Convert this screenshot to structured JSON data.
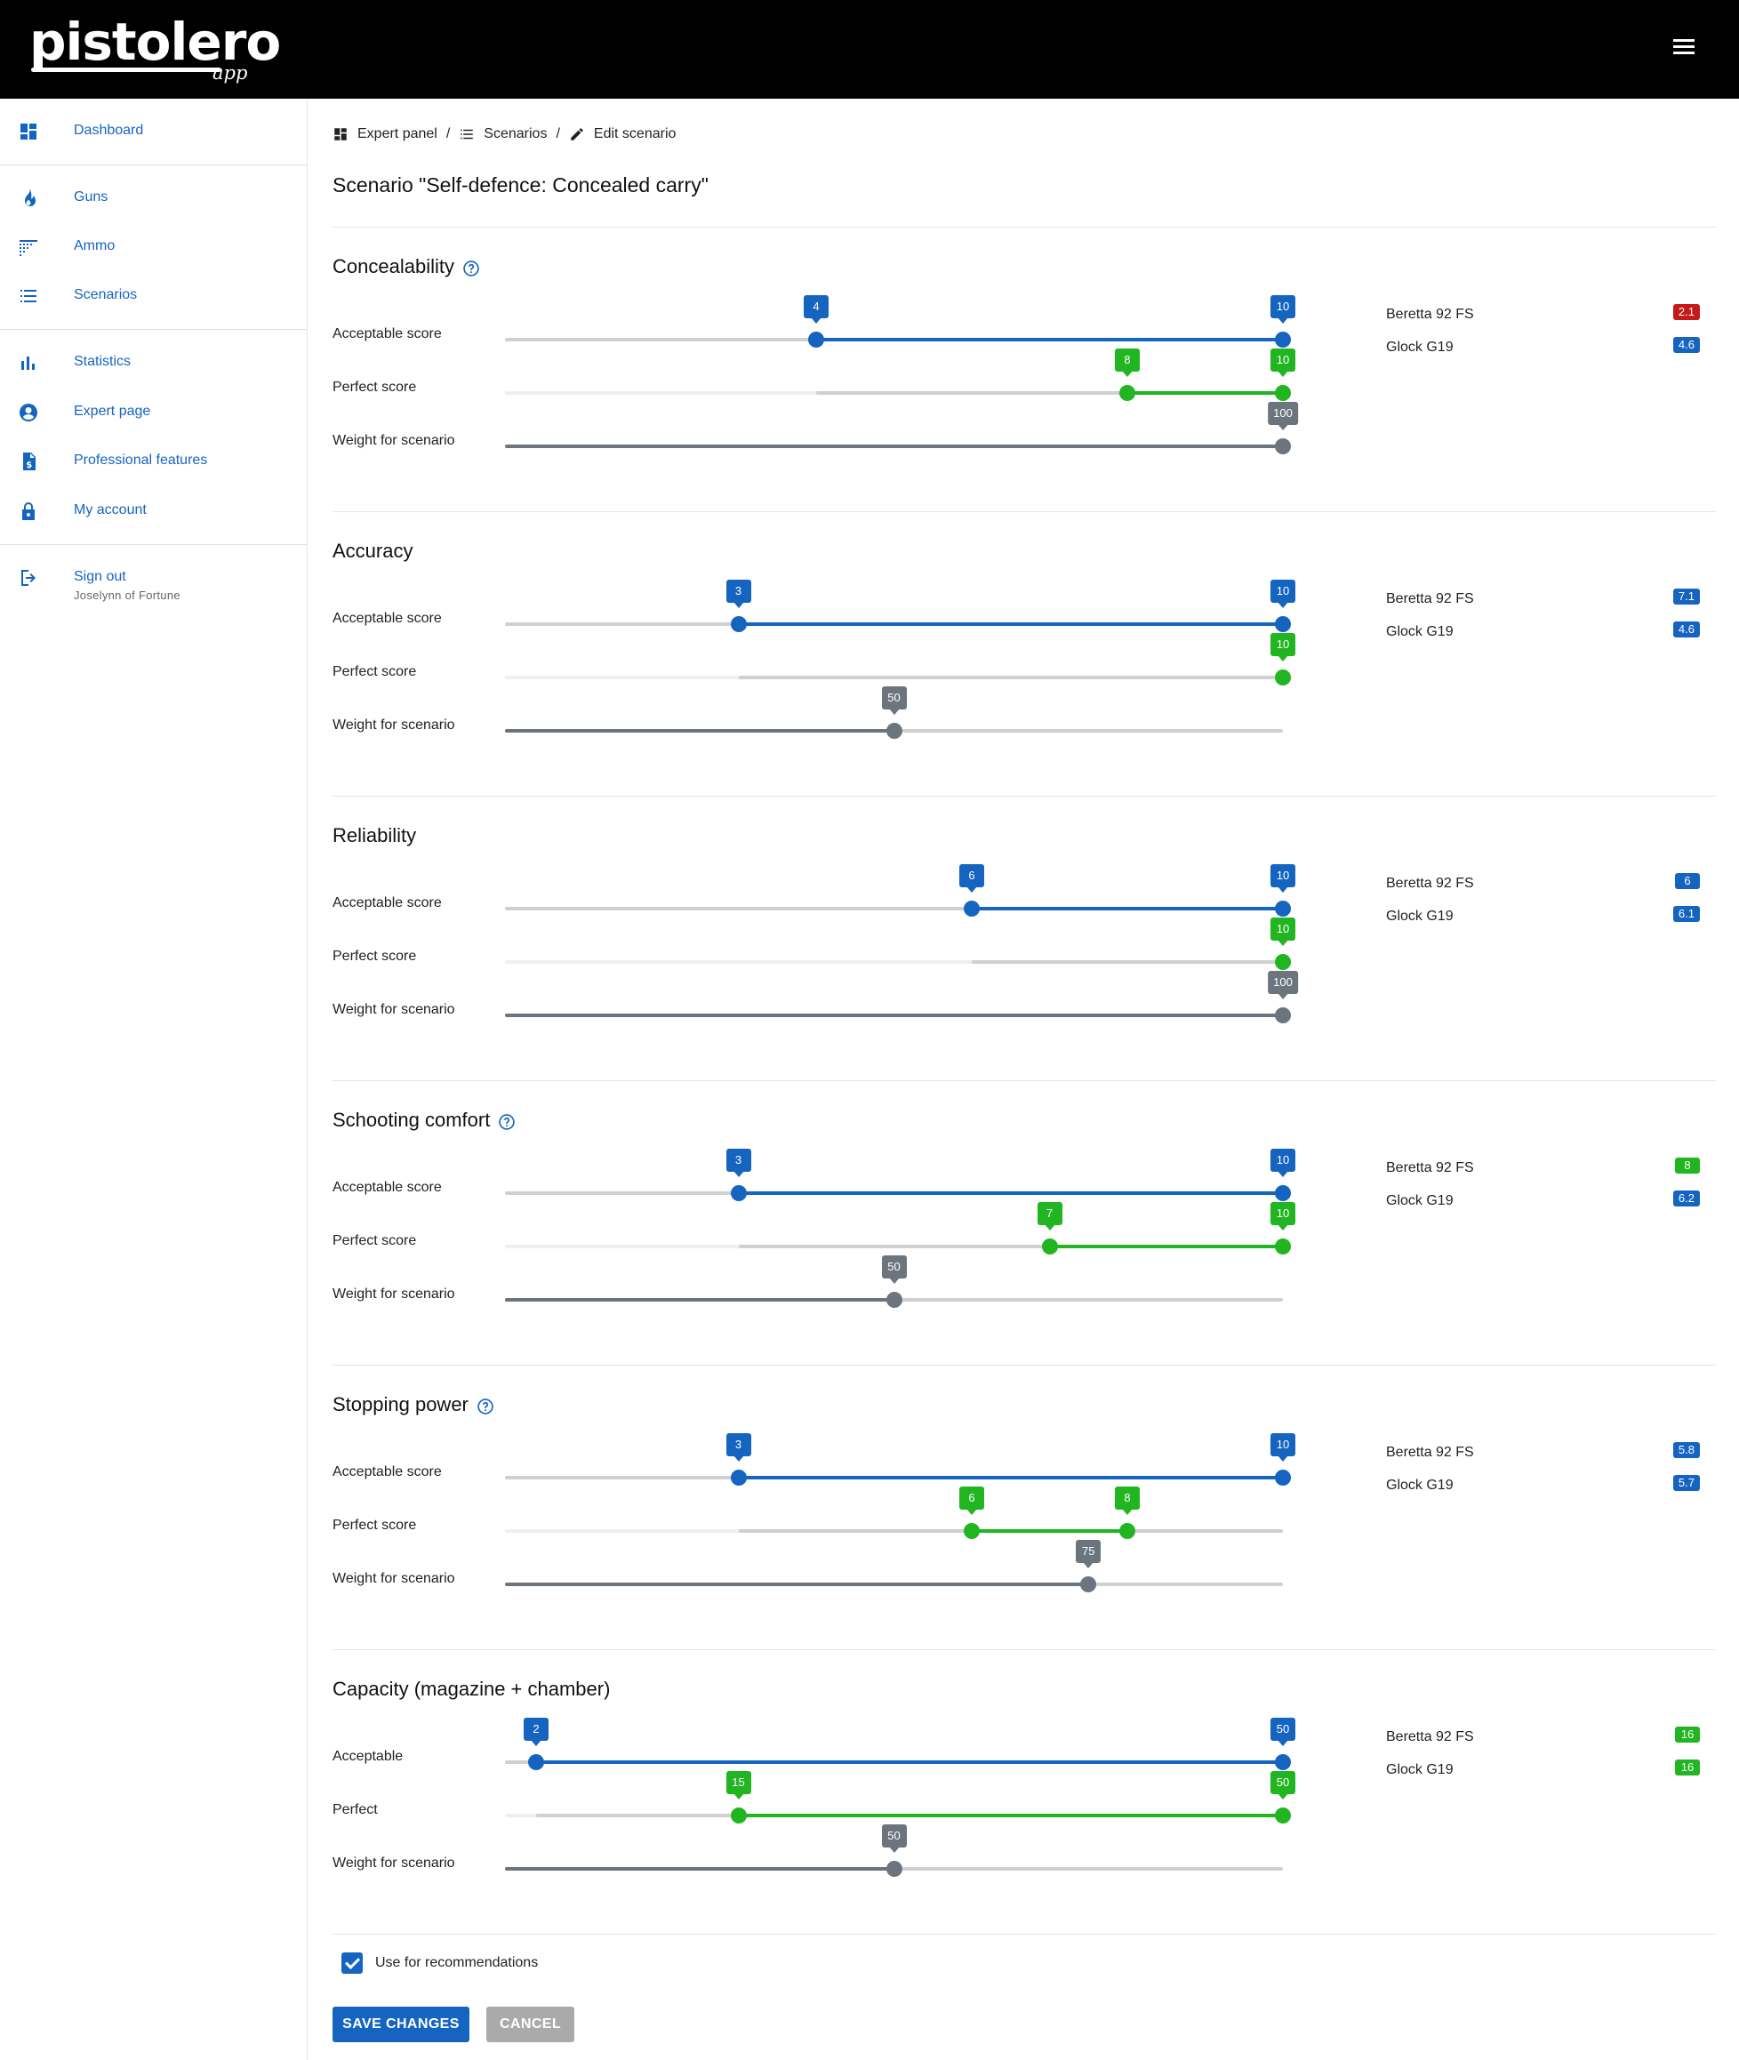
{
  "app": {
    "brand": "pistolero",
    "brand_sub": "app"
  },
  "sidebar": {
    "items": [
      {
        "label": "Dashboard",
        "icon": "dashboard-icon"
      },
      {
        "label": "Guns",
        "icon": "fire-icon"
      },
      {
        "label": "Ammo",
        "icon": "ammo-grid-icon"
      },
      {
        "label": "Scenarios",
        "icon": "list-icon"
      },
      {
        "label": "Statistics",
        "icon": "bar-chart-icon"
      },
      {
        "label": "Expert page",
        "icon": "account-circle-icon"
      },
      {
        "label": "Professional features",
        "icon": "dollar-document-icon"
      },
      {
        "label": "My account",
        "icon": "lock-icon"
      },
      {
        "label": "Sign out",
        "sub": "Joselynn of Fortune",
        "icon": "logout-icon"
      }
    ]
  },
  "breadcrumb": [
    {
      "label": "Expert panel",
      "icon": "dashboard-icon"
    },
    {
      "label": "Scenarios",
      "icon": "list-icon"
    },
    {
      "label": "Edit scenario",
      "icon": "pencil-icon"
    }
  ],
  "breadcrumb_sep": "/",
  "page_title": "Scenario \"Self-defence: Concealed carry\"",
  "colors": {
    "accent": "#1565c0",
    "green": "#21b521",
    "grey": "#6c757d",
    "red": "#c61a1a"
  },
  "sections": [
    {
      "title": "Concealability",
      "help": true,
      "rows": [
        {
          "label": "Acceptable score",
          "type": "acceptable",
          "min": 0,
          "max": 10,
          "low": 4,
          "high": 10
        },
        {
          "label": "Perfect score",
          "type": "perfect",
          "min": 0,
          "max": 10,
          "low": 8,
          "high": 10,
          "ref_low": 4
        },
        {
          "label": "Weight for scenario",
          "type": "weight",
          "min": 0,
          "max": 100,
          "value": 100
        }
      ],
      "guns": [
        {
          "name": "Beretta 92 FS",
          "score": "2.1",
          "color": "red"
        },
        {
          "name": "Glock G19",
          "score": "4.6",
          "color": "blue"
        }
      ]
    },
    {
      "title": "Accuracy",
      "help": false,
      "rows": [
        {
          "label": "Acceptable score",
          "type": "acceptable",
          "min": 0,
          "max": 10,
          "low": 3,
          "high": 10
        },
        {
          "label": "Perfect score",
          "type": "perfect",
          "min": 0,
          "max": 10,
          "low": 10,
          "high": 10,
          "ref_low": 3
        },
        {
          "label": "Weight for scenario",
          "type": "weight",
          "min": 0,
          "max": 100,
          "value": 50
        }
      ],
      "guns": [
        {
          "name": "Beretta 92 FS",
          "score": "7.1",
          "color": "blue"
        },
        {
          "name": "Glock G19",
          "score": "4.6",
          "color": "blue"
        }
      ]
    },
    {
      "title": "Reliability",
      "help": false,
      "rows": [
        {
          "label": "Acceptable score",
          "type": "acceptable",
          "min": 0,
          "max": 10,
          "low": 6,
          "high": 10
        },
        {
          "label": "Perfect score",
          "type": "perfect",
          "min": 0,
          "max": 10,
          "low": 10,
          "high": 10,
          "ref_low": 6
        },
        {
          "label": "Weight for scenario",
          "type": "weight",
          "min": 0,
          "max": 100,
          "value": 100
        }
      ],
      "guns": [
        {
          "name": "Beretta 92 FS",
          "score": "6",
          "color": "blue"
        },
        {
          "name": "Glock G19",
          "score": "6.1",
          "color": "blue"
        }
      ]
    },
    {
      "title": "Schooting comfort",
      "help": true,
      "rows": [
        {
          "label": "Acceptable score",
          "type": "acceptable",
          "min": 0,
          "max": 10,
          "low": 3,
          "high": 10
        },
        {
          "label": "Perfect score",
          "type": "perfect",
          "min": 0,
          "max": 10,
          "low": 7,
          "high": 10,
          "ref_low": 3
        },
        {
          "label": "Weight for scenario",
          "type": "weight",
          "min": 0,
          "max": 100,
          "value": 50
        }
      ],
      "guns": [
        {
          "name": "Beretta 92 FS",
          "score": "8",
          "color": "green"
        },
        {
          "name": "Glock G19",
          "score": "6.2",
          "color": "blue"
        }
      ]
    },
    {
      "title": "Stopping power",
      "help": true,
      "rows": [
        {
          "label": "Acceptable score",
          "type": "acceptable",
          "min": 0,
          "max": 10,
          "low": 3,
          "high": 10
        },
        {
          "label": "Perfect score",
          "type": "perfect",
          "min": 0,
          "max": 10,
          "low": 6,
          "high": 8,
          "ref_low": 3
        },
        {
          "label": "Weight for scenario",
          "type": "weight",
          "min": 0,
          "max": 100,
          "value": 75
        }
      ],
      "guns": [
        {
          "name": "Beretta 92 FS",
          "score": "5.8",
          "color": "blue"
        },
        {
          "name": "Glock G19",
          "score": "5.7",
          "color": "blue"
        }
      ]
    },
    {
      "title": "Capacity (magazine + chamber)",
      "help": false,
      "rows": [
        {
          "label": "Acceptable",
          "type": "acceptable",
          "min": 0,
          "max": 50,
          "low": 2,
          "high": 50
        },
        {
          "label": "Perfect",
          "type": "perfect",
          "min": 0,
          "max": 50,
          "low": 15,
          "high": 50,
          "ref_low": 2
        },
        {
          "label": "Weight for scenario",
          "type": "weight",
          "min": 0,
          "max": 100,
          "value": 50
        }
      ],
      "guns": [
        {
          "name": "Beretta 92 FS",
          "score": "16",
          "color": "green"
        },
        {
          "name": "Glock G19",
          "score": "16",
          "color": "green"
        }
      ]
    }
  ],
  "use_for_recommendations": {
    "label": "Use for recommendations",
    "checked": true
  },
  "buttons": {
    "save": "SAVE CHANGES",
    "cancel": "CANCEL"
  }
}
